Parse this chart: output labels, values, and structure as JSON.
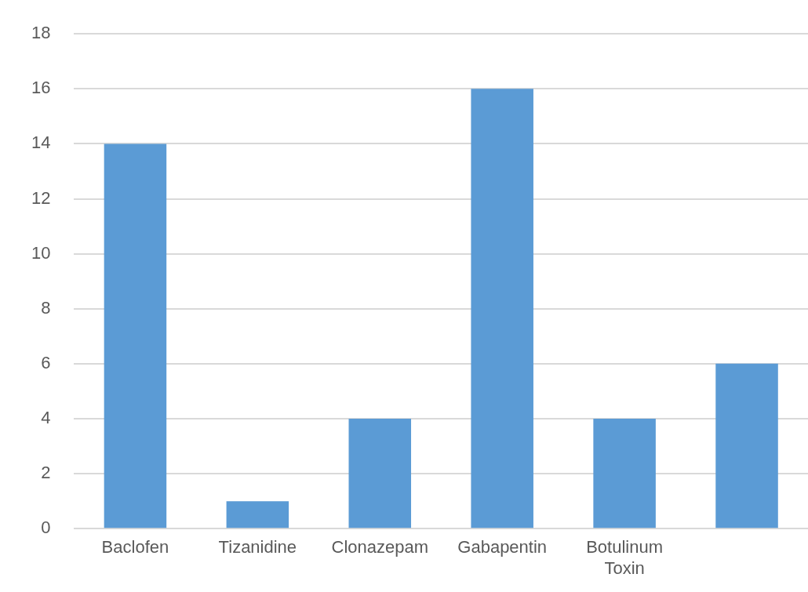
{
  "chart_data": {
    "type": "bar",
    "categories": [
      "Baclofen",
      "Tizanidine",
      "Clonazepam",
      "Gabapentin",
      "Botulinum Toxin",
      null
    ],
    "values": [
      14,
      1,
      4,
      16,
      4,
      6
    ],
    "color": "#5b9bd5",
    "ylim": [
      0,
      18
    ],
    "yticks": [
      0,
      2,
      4,
      6,
      8,
      10,
      12,
      14,
      16,
      18
    ],
    "grid": "y"
  }
}
